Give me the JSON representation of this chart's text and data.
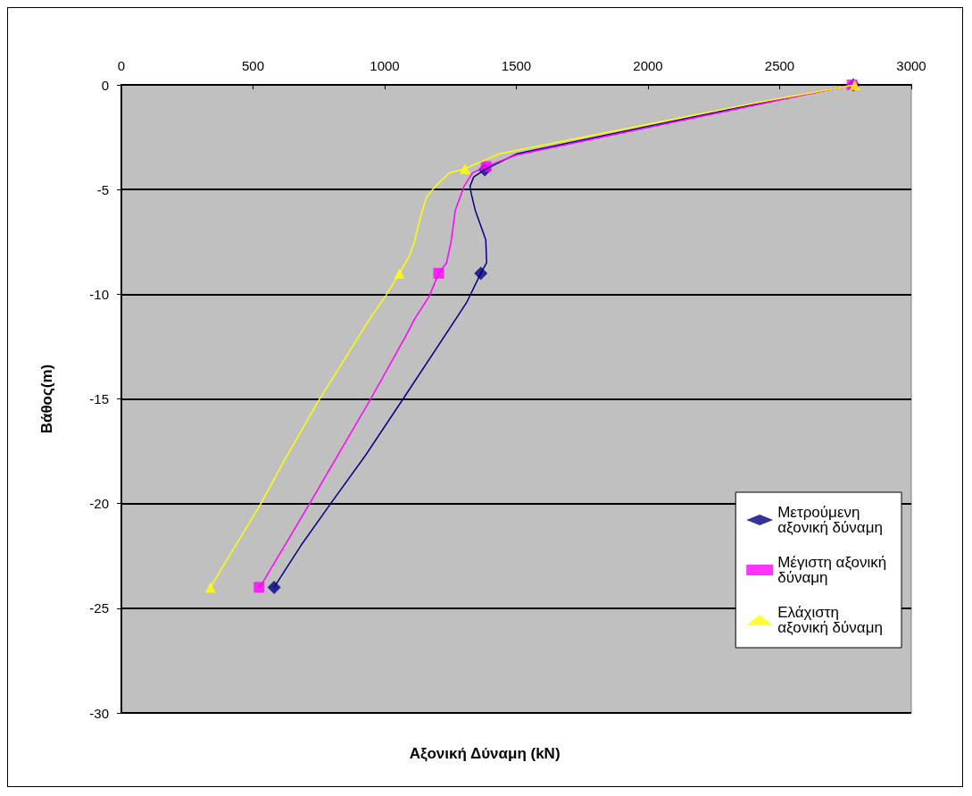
{
  "chart_data": {
    "type": "line",
    "xlabel": "Αξονική Δύναμη (kN)",
    "ylabel": "Βάθος(m)",
    "xlim": [
      0,
      3000
    ],
    "xticks": [
      0,
      500,
      1000,
      1500,
      2000,
      2500,
      3000
    ],
    "ylim": [
      -30,
      0
    ],
    "yticks": [
      -30,
      -25,
      -20,
      -15,
      -10,
      -5,
      0
    ],
    "grid": "y",
    "legend": "bottom right",
    "series": [
      {
        "name": "Μετρούμενη αξονική δύναμη",
        "type": "scatter",
        "marker": "diamond",
        "color": "#000080",
        "x": [
          2780,
          1380,
          1365,
          580
        ],
        "values": [
          0,
          -4.05,
          -9,
          -24
        ]
      },
      {
        "name": "Μέγιστη αξονική δύναμη",
        "type": "scatter",
        "marker": "square",
        "color": "#ff00ff",
        "x": [
          2775,
          1385,
          1205,
          523
        ],
        "values": [
          0,
          -3.9,
          -9,
          -24
        ]
      },
      {
        "name": "Ελάχιστη αξονική δύναμη",
        "type": "scatter",
        "marker": "triangle",
        "color": "#ffff00",
        "x": [
          2785,
          1305,
          1056,
          338
        ],
        "values": [
          0,
          -4,
          -9,
          -24
        ]
      },
      {
        "marker": "none",
        "color": "#000080",
        "x": [
          2780,
          2394,
          1500,
          1380,
          1338,
          1324,
          1328,
          1344,
          1384,
          1387,
          1365,
          1311,
          1070,
          927,
          795,
          682,
          580
        ],
        "values": [
          0,
          -0.95,
          -3.3,
          -4.05,
          -4.4,
          -4.85,
          -5.15,
          -6,
          -7.4,
          -8.5,
          -9,
          -10.4,
          -15,
          -17.7,
          -20,
          -22,
          -24
        ]
      },
      {
        "marker": "none",
        "color": "#ff00ff",
        "x": [
          2775,
          2394,
          1500,
          1385,
          1334,
          1301,
          1268,
          1252,
          1235,
          1205,
          1169,
          1113,
          1080,
          947,
          715,
          540,
          523
        ],
        "values": [
          0,
          -1,
          -3.35,
          -3.9,
          -4.2,
          -4.85,
          -6,
          -7.5,
          -8.5,
          -9,
          -10.1,
          -11.2,
          -12,
          -15,
          -20,
          -23.7,
          -24
        ]
      },
      {
        "marker": "none",
        "color": "#ffff00",
        "x": [
          2785,
          2394,
          1434,
          1305,
          1245,
          1192,
          1159,
          1136,
          1113,
          1093,
          1056,
          1003,
          947,
          748,
          616,
          530,
          338
        ],
        "values": [
          0,
          -0.9,
          -3.3,
          -4,
          -4.2,
          -4.85,
          -5.35,
          -6.3,
          -7.5,
          -8.2,
          -9,
          -10.1,
          -11.1,
          -15.1,
          -18,
          -20,
          -24
        ]
      }
    ]
  }
}
